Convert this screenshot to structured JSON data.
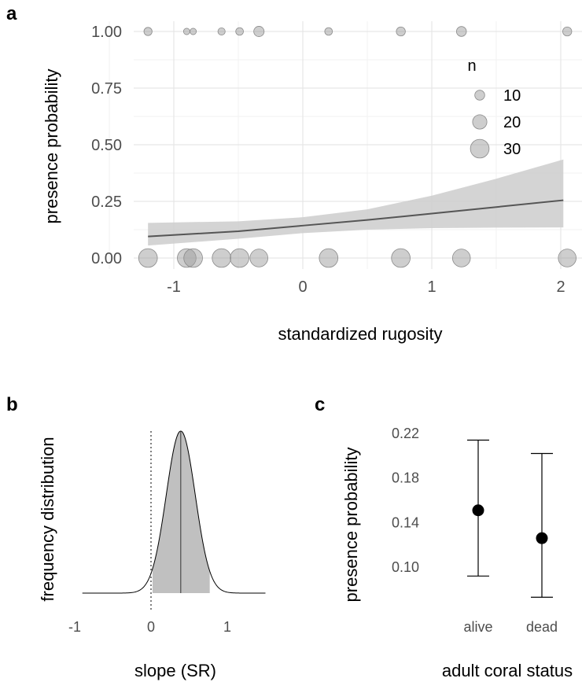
{
  "panels": {
    "a": "a",
    "b": "b",
    "c": "c"
  },
  "chart_data": [
    {
      "panel": "a",
      "type": "scatter",
      "xlabel": "standardized rugosity",
      "ylabel": "presence probability",
      "xlim": [
        -1.25,
        2.1
      ],
      "ylim": [
        0,
        1
      ],
      "xticks": [
        -1,
        0,
        1,
        2
      ],
      "xtick_labels": [
        "-1",
        "0",
        "1",
        "2"
      ],
      "yticks": [
        0,
        0.25,
        0.5,
        0.75,
        1
      ],
      "ytick_labels": [
        "0.00",
        "0.25",
        "0.50",
        "0.75",
        "1.00"
      ],
      "grid": true,
      "points_presence_1": [
        {
          "x": -1.2,
          "n": 6
        },
        {
          "x": -0.9,
          "n": 2
        },
        {
          "x": -0.85,
          "n": 2
        },
        {
          "x": -0.63,
          "n": 4
        },
        {
          "x": -0.49,
          "n": 5
        },
        {
          "x": -0.34,
          "n": 11
        },
        {
          "x": 0.2,
          "n": 5
        },
        {
          "x": 0.76,
          "n": 8
        },
        {
          "x": 1.23,
          "n": 10
        },
        {
          "x": 2.05,
          "n": 8
        }
      ],
      "points_presence_0": [
        {
          "x": -1.2,
          "n": 30
        },
        {
          "x": -0.9,
          "n": 30
        },
        {
          "x": -0.85,
          "n": 30
        },
        {
          "x": -0.63,
          "n": 30
        },
        {
          "x": -0.49,
          "n": 30
        },
        {
          "x": -0.34,
          "n": 28
        },
        {
          "x": 0.2,
          "n": 30
        },
        {
          "x": 0.76,
          "n": 30
        },
        {
          "x": 1.23,
          "n": 28
        },
        {
          "x": 2.05,
          "n": 28
        }
      ],
      "fit_line": {
        "x": [
          -1.2,
          -0.5,
          0,
          0.5,
          1,
          1.5,
          2.02
        ],
        "y": [
          0.095,
          0.118,
          0.143,
          0.168,
          0.196,
          0.225,
          0.255
        ]
      },
      "ci_band": {
        "x": [
          -1.2,
          -0.5,
          0,
          0.5,
          1,
          1.5,
          2.02
        ],
        "lower": [
          0.055,
          0.085,
          0.11,
          0.125,
          0.132,
          0.134,
          0.135
        ],
        "upper": [
          0.155,
          0.162,
          0.18,
          0.215,
          0.275,
          0.35,
          0.435
        ]
      },
      "legend": {
        "title": "n",
        "entries": [
          {
            "label": "10",
            "n": 10
          },
          {
            "label": "20",
            "n": 20
          },
          {
            "label": "30",
            "n": 30
          }
        ],
        "placement": "top-right"
      }
    },
    {
      "panel": "b",
      "type": "area",
      "xlabel": "slope (SR)",
      "ylabel": "frequency distribution",
      "xlim": [
        -1,
        1.5
      ],
      "xticks": [
        -1,
        0,
        1
      ],
      "xtick_labels": [
        "-1",
        "0",
        "1"
      ],
      "distribution": {
        "mean": 0.39,
        "sd": 0.19,
        "shaded_from": 0.02,
        "shaded_to": 0.77,
        "range": [
          -0.9,
          1.5
        ]
      },
      "zero_line": 0
    },
    {
      "panel": "c",
      "type": "scatter",
      "xlabel": "adult coral status",
      "ylabel": "presence probability",
      "categories": [
        "alive",
        "dead"
      ],
      "ylim": [
        0.08,
        0.22
      ],
      "yticks": [
        0.1,
        0.14,
        0.18,
        0.22
      ],
      "ytick_labels": [
        "0.10",
        "0.14",
        "0.18",
        "0.22"
      ],
      "values": [
        0.151,
        0.126
      ],
      "lower": [
        0.092,
        0.073
      ],
      "upper": [
        0.214,
        0.202
      ]
    }
  ]
}
